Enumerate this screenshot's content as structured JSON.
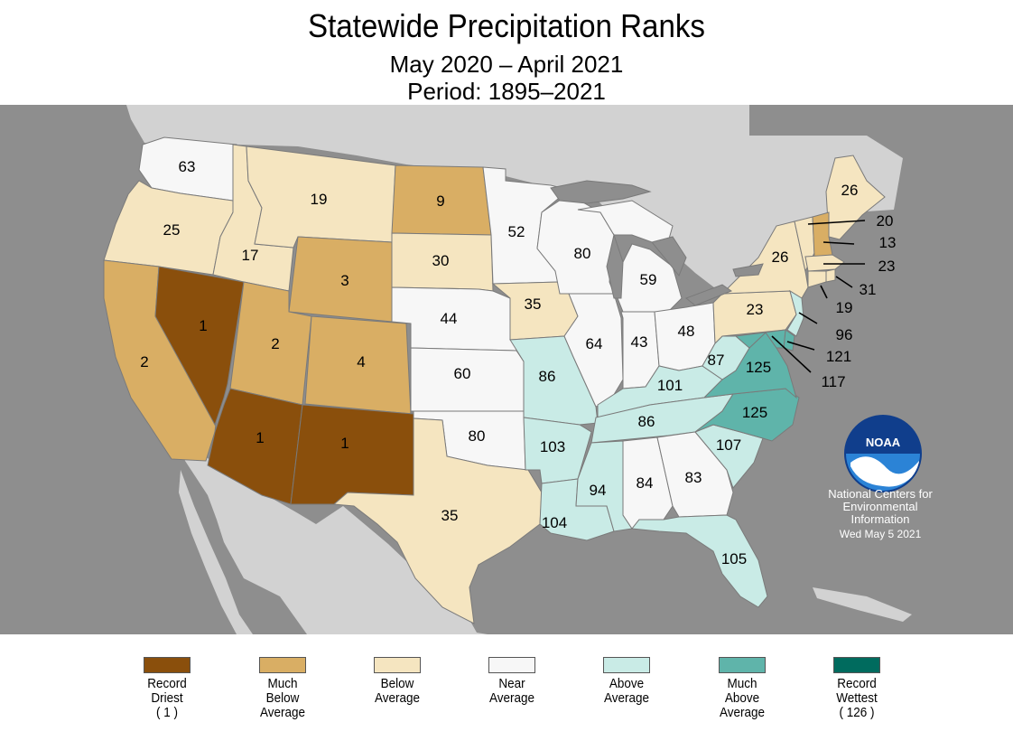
{
  "title": "Statewide Precipitation Ranks",
  "subtitle": "May 2020 – April 2021",
  "period": "Period: 1895–2021",
  "colors": {
    "record_driest": "#8a4f0c",
    "much_below": "#d9ae64",
    "below": "#f5e5c0",
    "near": "#f7f7f7",
    "above": "#c9ebe6",
    "much_above": "#5fb4aa",
    "record_wettest": "#006b5e",
    "ocean": "#8e8e8e",
    "land": "#d2d2d2"
  },
  "states": {
    "WA": {
      "rank": "63",
      "cat": "near"
    },
    "OR": {
      "rank": "25",
      "cat": "below"
    },
    "CA": {
      "rank": "2",
      "cat": "much_below"
    },
    "NV": {
      "rank": "1",
      "cat": "record_driest"
    },
    "ID": {
      "rank": "17",
      "cat": "below"
    },
    "MT": {
      "rank": "19",
      "cat": "below"
    },
    "WY": {
      "rank": "3",
      "cat": "much_below"
    },
    "UT": {
      "rank": "2",
      "cat": "much_below"
    },
    "CO": {
      "rank": "4",
      "cat": "much_below"
    },
    "AZ": {
      "rank": "1",
      "cat": "record_driest"
    },
    "NM": {
      "rank": "1",
      "cat": "record_driest"
    },
    "ND": {
      "rank": "9",
      "cat": "much_below"
    },
    "SD": {
      "rank": "30",
      "cat": "below"
    },
    "NE": {
      "rank": "44",
      "cat": "near"
    },
    "KS": {
      "rank": "60",
      "cat": "near"
    },
    "OK": {
      "rank": "80",
      "cat": "near"
    },
    "TX": {
      "rank": "35",
      "cat": "below"
    },
    "MN": {
      "rank": "52",
      "cat": "near"
    },
    "IA": {
      "rank": "35",
      "cat": "below"
    },
    "MO": {
      "rank": "86",
      "cat": "above"
    },
    "AR": {
      "rank": "103",
      "cat": "above"
    },
    "LA": {
      "rank": "104",
      "cat": "above"
    },
    "WI": {
      "rank": "80",
      "cat": "near"
    },
    "IL": {
      "rank": "64",
      "cat": "near"
    },
    "MI": {
      "rank": "59",
      "cat": "near"
    },
    "IN": {
      "rank": "43",
      "cat": "near"
    },
    "OH": {
      "rank": "48",
      "cat": "near"
    },
    "KY": {
      "rank": "101",
      "cat": "above"
    },
    "TN": {
      "rank": "86",
      "cat": "above"
    },
    "MS": {
      "rank": "94",
      "cat": "above"
    },
    "AL": {
      "rank": "84",
      "cat": "near"
    },
    "GA": {
      "rank": "83",
      "cat": "near"
    },
    "FL": {
      "rank": "105",
      "cat": "above"
    },
    "SC": {
      "rank": "107",
      "cat": "above"
    },
    "NC": {
      "rank": "125",
      "cat": "much_above"
    },
    "VA": {
      "rank": "125",
      "cat": "much_above"
    },
    "WV": {
      "rank": "87",
      "cat": "above"
    },
    "PA": {
      "rank": "23",
      "cat": "below"
    },
    "NY": {
      "rank": "26",
      "cat": "below"
    },
    "ME": {
      "rank": "26",
      "cat": "below"
    },
    "VT": {
      "rank": "20",
      "cat": "below"
    },
    "NH": {
      "rank": "13",
      "cat": "much_below"
    },
    "MA": {
      "rank": "23",
      "cat": "below"
    },
    "RI": {
      "rank": "31",
      "cat": "below"
    },
    "CT": {
      "rank": "19",
      "cat": "below"
    },
    "NJ": {
      "rank": "96",
      "cat": "above"
    },
    "DE": {
      "rank": "121",
      "cat": "much_above"
    },
    "MD": {
      "rank": "117",
      "cat": "much_above"
    }
  },
  "logo": {
    "text": "NOAA",
    "org_line1": "National Centers for",
    "org_line2": "Environmental",
    "org_line3": "Information",
    "date": "Wed May  5 2021"
  },
  "legend": [
    {
      "lines": [
        "Record",
        "Driest",
        "( 1 )"
      ],
      "cat": "record_driest"
    },
    {
      "lines": [
        "Much",
        "Below",
        "Average"
      ],
      "cat": "much_below"
    },
    {
      "lines": [
        "Below",
        "Average"
      ],
      "cat": "below"
    },
    {
      "lines": [
        "Near",
        "Average"
      ],
      "cat": "near"
    },
    {
      "lines": [
        "Above",
        "Average"
      ],
      "cat": "above"
    },
    {
      "lines": [
        "Much",
        "Above",
        "Average"
      ],
      "cat": "much_above"
    },
    {
      "lines": [
        "Record",
        "Wettest",
        "( 126 )"
      ],
      "cat": "record_wettest"
    }
  ]
}
